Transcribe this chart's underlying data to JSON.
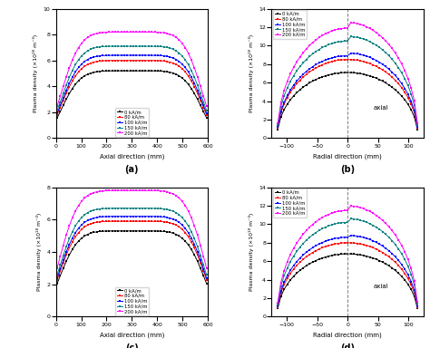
{
  "colors": [
    "black",
    "red",
    "blue",
    "teal",
    "magenta"
  ],
  "labels": [
    "0 kA/m",
    "80 kA/m",
    "100 kA/m",
    "150 kA/m",
    "200 kA/m"
  ],
  "panel_labels": [
    "(a)",
    "(b)",
    "(c)",
    "(d)"
  ],
  "axial_xlabel": "Axial direction (mm)",
  "radial_xlabel": "Radial direction (mm)",
  "ylabel": "Plasma density (×10¹⁸ m⁻³)",
  "axial_xlim": [
    0,
    600
  ],
  "axial_xticks": [
    0,
    100,
    200,
    300,
    400,
    500,
    600
  ],
  "radial_xlim": [
    -125,
    125
  ],
  "radial_xticks": [
    -100,
    -50,
    0,
    50,
    100
  ],
  "panel_a_ylim": [
    0,
    10
  ],
  "panel_a_yticks": [
    0,
    2,
    4,
    6,
    8,
    10
  ],
  "panel_b_ylim": [
    0,
    14
  ],
  "panel_b_yticks": [
    0,
    2,
    4,
    6,
    8,
    10,
    12,
    14
  ],
  "panel_c_ylim": [
    0,
    8
  ],
  "panel_c_yticks": [
    0,
    2,
    4,
    6,
    8
  ],
  "panel_d_ylim": [
    0,
    14
  ],
  "panel_d_yticks": [
    0,
    2,
    4,
    6,
    8,
    10,
    12,
    14
  ],
  "axial_text": "axial",
  "peaks_a": [
    5.2,
    6.0,
    6.4,
    7.1,
    8.2
  ],
  "peaks_b_left": [
    7.1,
    8.5,
    8.9,
    10.5,
    11.9
  ],
  "peaks_b_right": [
    7.1,
    8.5,
    9.2,
    11.0,
    12.5
  ],
  "peaks_c": [
    5.3,
    5.9,
    6.2,
    6.7,
    7.8
  ],
  "peaks_d_left": [
    6.8,
    8.0,
    8.6,
    10.2,
    11.5
  ],
  "peaks_d_right": [
    6.8,
    8.0,
    8.8,
    10.6,
    12.0
  ]
}
